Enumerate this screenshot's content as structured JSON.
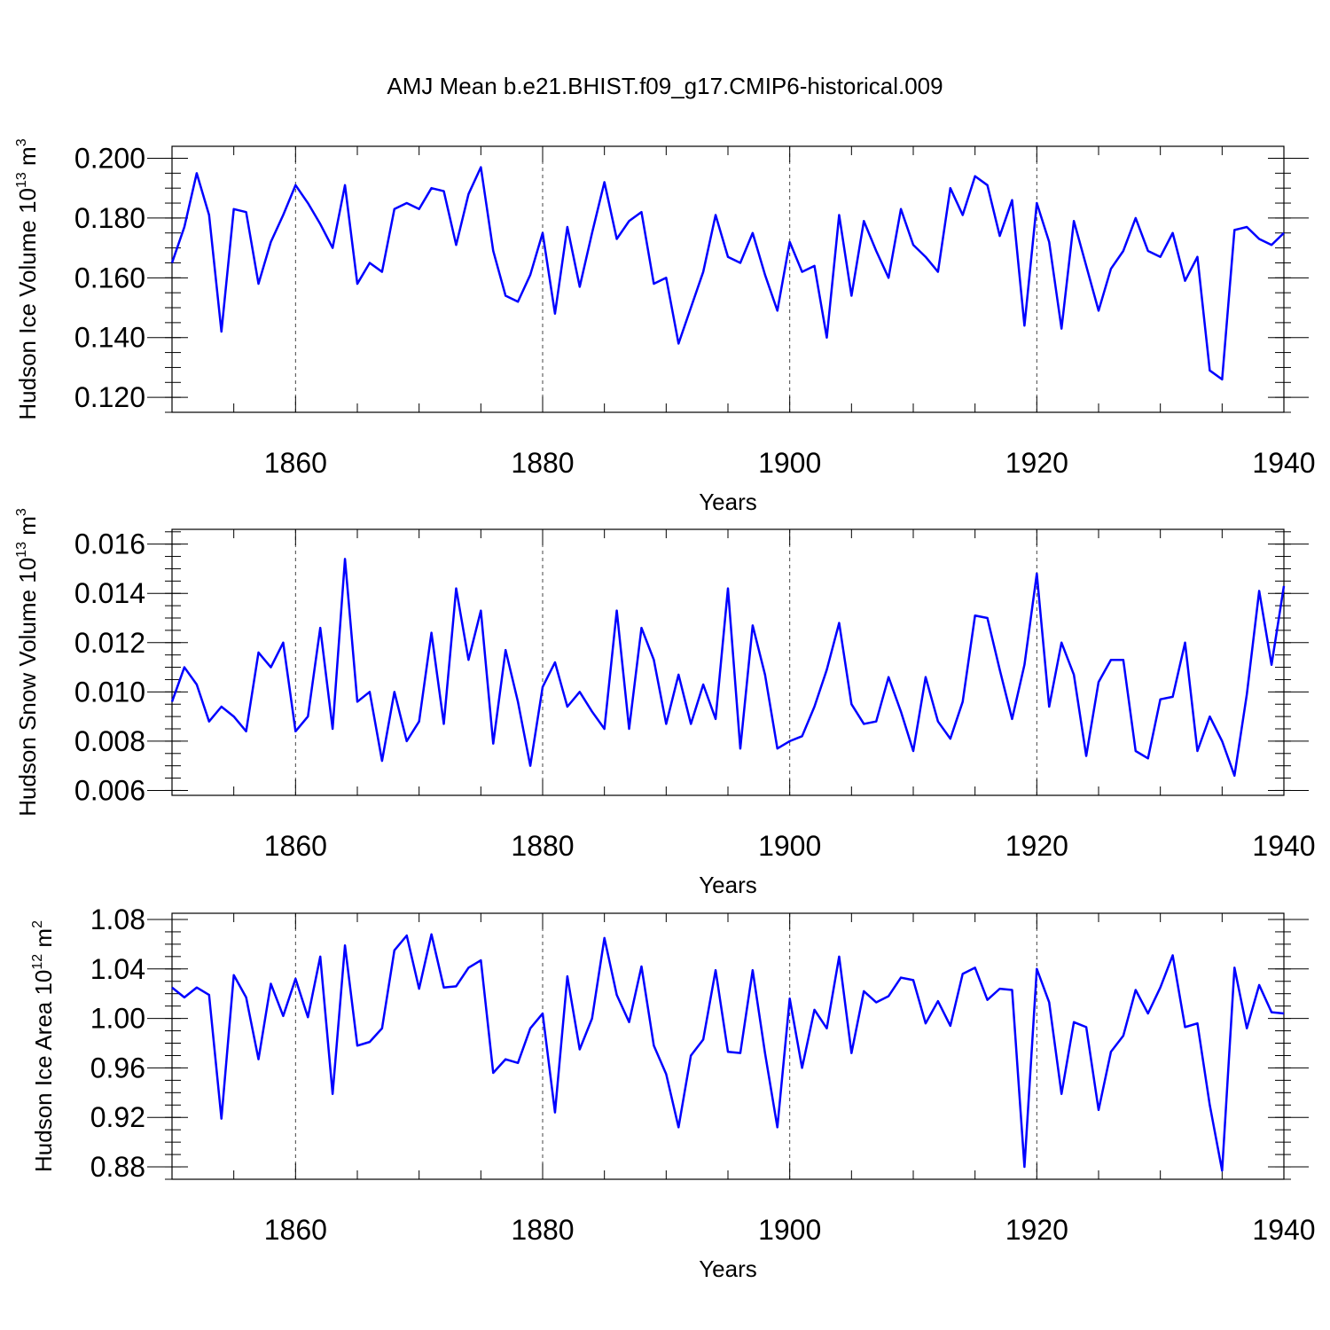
{
  "title": "AMJ Mean b.e21.BHIST.f09_g17.CMIP6-historical.009",
  "colors": {
    "series": "#0000ff",
    "axes": "#000000",
    "grid": "#444444"
  },
  "chart_data": [
    {
      "type": "line",
      "ylabel_main": "Hudson Ice Volume 10",
      "ylabel_exp": "13",
      "ylabel_unit": "m",
      "ylabel_unit_exp": "3",
      "xlabel": "Years",
      "xlim": [
        1850,
        1940
      ],
      "xticks": [
        1860,
        1880,
        1900,
        1920,
        1940
      ],
      "ylim": [
        0.115,
        0.204
      ],
      "yticks": [
        0.12,
        0.14,
        0.16,
        0.18,
        0.2
      ],
      "ytick_labels": [
        "0.120",
        "0.140",
        "0.160",
        "0.180",
        "0.200"
      ],
      "x_start": 1850,
      "values": [
        0.165,
        0.177,
        0.195,
        0.181,
        0.142,
        0.183,
        0.182,
        0.158,
        0.172,
        0.181,
        0.191,
        0.185,
        0.178,
        0.17,
        0.191,
        0.158,
        0.165,
        0.162,
        0.183,
        0.185,
        0.183,
        0.19,
        0.189,
        0.171,
        0.188,
        0.197,
        0.169,
        0.154,
        0.152,
        0.161,
        0.175,
        0.148,
        0.177,
        0.157,
        0.175,
        0.192,
        0.173,
        0.179,
        0.182,
        0.158,
        0.16,
        0.138,
        0.15,
        0.162,
        0.181,
        0.167,
        0.165,
        0.175,
        0.161,
        0.149,
        0.172,
        0.162,
        0.164,
        0.14,
        0.181,
        0.154,
        0.179,
        0.169,
        0.16,
        0.183,
        0.171,
        0.167,
        0.162,
        0.19,
        0.181,
        0.194,
        0.191,
        0.174,
        0.186,
        0.144,
        0.185,
        0.172,
        0.143,
        0.179,
        0.164,
        0.149,
        0.163,
        0.169,
        0.18,
        0.169,
        0.167,
        0.175,
        0.159,
        0.167,
        0.129,
        0.126,
        0.176,
        0.177,
        0.173,
        0.171,
        0.175
      ]
    },
    {
      "type": "line",
      "ylabel_main": "Hudson Snow Volume 10",
      "ylabel_exp": "13",
      "ylabel_unit": "m",
      "ylabel_unit_exp": "3",
      "xlabel": "Years",
      "xlim": [
        1850,
        1940
      ],
      "xticks": [
        1860,
        1880,
        1900,
        1920,
        1940
      ],
      "ylim": [
        0.0058,
        0.0166
      ],
      "yticks": [
        0.006,
        0.008,
        0.01,
        0.012,
        0.014,
        0.016
      ],
      "ytick_labels": [
        "0.006",
        "0.008",
        "0.010",
        "0.012",
        "0.014",
        "0.016"
      ],
      "x_start": 1850,
      "values": [
        0.0096,
        0.011,
        0.0103,
        0.0088,
        0.0094,
        0.009,
        0.0084,
        0.0116,
        0.011,
        0.012,
        0.0084,
        0.009,
        0.0126,
        0.0085,
        0.0154,
        0.0096,
        0.01,
        0.0072,
        0.01,
        0.008,
        0.0088,
        0.0124,
        0.0087,
        0.0142,
        0.0113,
        0.0133,
        0.0079,
        0.0117,
        0.0096,
        0.007,
        0.0102,
        0.0112,
        0.0094,
        0.01,
        0.0092,
        0.0085,
        0.0133,
        0.0085,
        0.0126,
        0.0113,
        0.0087,
        0.0107,
        0.0087,
        0.0103,
        0.0089,
        0.0142,
        0.0077,
        0.0127,
        0.0107,
        0.0077,
        0.008,
        0.0082,
        0.0094,
        0.0109,
        0.0128,
        0.0095,
        0.0087,
        0.0088,
        0.0106,
        0.0092,
        0.0076,
        0.0106,
        0.0088,
        0.0081,
        0.0096,
        0.0131,
        0.013,
        0.0109,
        0.0089,
        0.0111,
        0.0148,
        0.0094,
        0.012,
        0.0107,
        0.0074,
        0.0104,
        0.0113,
        0.0113,
        0.0076,
        0.0073,
        0.0097,
        0.0098,
        0.012,
        0.0076,
        0.009,
        0.008,
        0.0066,
        0.0099,
        0.0141,
        0.0111,
        0.0143
      ]
    },
    {
      "type": "line",
      "ylabel_main": "Hudson Ice Area 10",
      "ylabel_exp": "12",
      "ylabel_unit": "m",
      "ylabel_unit_exp": "2",
      "xlabel": "Years",
      "xlim": [
        1850,
        1940
      ],
      "xticks": [
        1860,
        1880,
        1900,
        1920,
        1940
      ],
      "ylim": [
        0.87,
        1.085
      ],
      "yticks": [
        0.88,
        0.92,
        0.96,
        1.0,
        1.04,
        1.08
      ],
      "ytick_labels": [
        "0.88",
        "0.92",
        "0.96",
        "1.00",
        "1.04",
        "1.08"
      ],
      "x_start": 1850,
      "values": [
        1.025,
        1.017,
        1.025,
        1.019,
        0.919,
        1.035,
        1.017,
        0.967,
        1.028,
        1.002,
        1.032,
        1.001,
        1.05,
        0.939,
        1.059,
        0.978,
        0.981,
        0.992,
        1.055,
        1.067,
        1.024,
        1.068,
        1.025,
        1.026,
        1.041,
        1.047,
        0.956,
        0.967,
        0.964,
        0.992,
        1.004,
        0.924,
        1.034,
        0.975,
        1.0,
        1.065,
        1.019,
        0.997,
        1.042,
        0.978,
        0.955,
        0.912,
        0.97,
        0.983,
        1.039,
        0.973,
        0.972,
        1.039,
        0.972,
        0.912,
        1.016,
        0.96,
        1.007,
        0.992,
        1.05,
        0.972,
        1.022,
        1.013,
        1.018,
        1.033,
        1.031,
        0.996,
        1.014,
        0.994,
        1.036,
        1.041,
        1.015,
        1.024,
        1.023,
        0.88,
        1.04,
        1.013,
        0.939,
        0.997,
        0.993,
        0.926,
        0.973,
        0.986,
        1.023,
        1.004,
        1.025,
        1.051,
        0.993,
        0.996,
        0.93,
        0.877,
        1.041,
        0.992,
        1.027,
        1.005,
        1.004
      ]
    }
  ]
}
